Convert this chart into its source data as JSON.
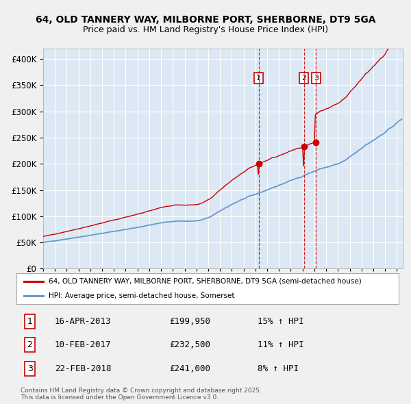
{
  "title1": "64, OLD TANNERY WAY, MILBORNE PORT, SHERBORNE, DT9 5GA",
  "title2": "Price paid vs. HM Land Registry's House Price Index (HPI)",
  "legend_label_red": "64, OLD TANNERY WAY, MILBORNE PORT, SHERBORNE, DT9 5GA (semi-detached house)",
  "legend_label_blue": "HPI: Average price, semi-detached house, Somerset",
  "sale1_date": "16-APR-2013",
  "sale1_price": 199950,
  "sale1_hpi": "15% ↑ HPI",
  "sale2_date": "10-FEB-2017",
  "sale2_price": 232500,
  "sale2_hpi": "11% ↑ HPI",
  "sale3_date": "22-FEB-2018",
  "sale3_price": 241000,
  "sale3_hpi": "8% ↑ HPI",
  "vline1_x": 2013.29,
  "vline2_x": 2017.11,
  "vline3_x": 2018.14,
  "sale1_marker_x": 2013.29,
  "sale1_marker_y": 199950,
  "sale2_marker_x": 2017.11,
  "sale2_marker_y": 232500,
  "sale3_marker_x": 2018.14,
  "sale3_marker_y": 241000,
  "xmin": 1995,
  "xmax": 2025.5,
  "ymin": 0,
  "ymax": 420000,
  "yticks": [
    0,
    50000,
    100000,
    150000,
    200000,
    250000,
    300000,
    350000,
    400000
  ],
  "plot_bg": "#dce9f5",
  "grid_color": "#ffffff",
  "red_color": "#cc0000",
  "blue_color": "#6699cc",
  "fig_bg": "#f0f0f0",
  "footer": "Contains HM Land Registry data © Crown copyright and database right 2025.\nThis data is licensed under the Open Government Licence v3.0."
}
